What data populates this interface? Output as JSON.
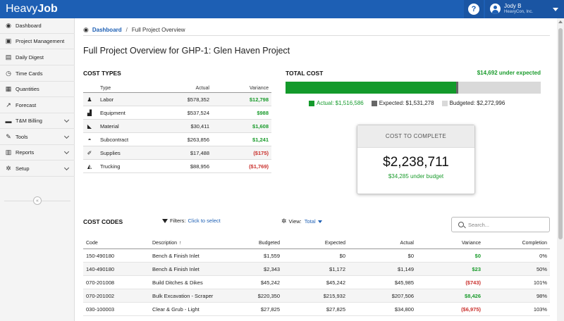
{
  "app": {
    "logo_light": "Heavy",
    "logo_bold": "Job"
  },
  "user": {
    "name": "Jody B",
    "company": "HeavyCon, Inc."
  },
  "help": {
    "label": "?"
  },
  "sidebar": {
    "items": [
      {
        "label": "Dashboard",
        "icon": "dashboard-icon",
        "glyph": "◉"
      },
      {
        "label": "Project Management",
        "icon": "project-management-icon",
        "glyph": "▣"
      },
      {
        "label": "Daily Digest",
        "icon": "daily-digest-icon",
        "glyph": "▤"
      },
      {
        "label": "Time Cards",
        "icon": "clock-icon",
        "glyph": "◷"
      },
      {
        "label": "Quantities",
        "icon": "calculator-icon",
        "glyph": "▦"
      },
      {
        "label": "Forecast",
        "icon": "line-chart-icon",
        "glyph": "↗"
      },
      {
        "label": "T&M Billing",
        "icon": "billing-icon",
        "glyph": "▬"
      },
      {
        "label": "Tools",
        "icon": "wrench-icon",
        "glyph": "✎"
      },
      {
        "label": "Reports",
        "icon": "bar-chart-icon",
        "glyph": "▥"
      },
      {
        "label": "Setup",
        "icon": "gear-icon",
        "glyph": "✲"
      }
    ],
    "collapse_label": "«"
  },
  "breadcrumb": {
    "home": "Dashboard",
    "separator": "/",
    "current": "Full Project Overview"
  },
  "page_title": "Full Project Overview for GHP-1: Glen Haven Project",
  "cost_types": {
    "title": "COST TYPES",
    "headers": {
      "type": "Type",
      "actual": "Actual",
      "variance": "Variance"
    },
    "rows": [
      {
        "type": "Labor",
        "actual": "$578,352",
        "variance": "$12,798",
        "status": "pos",
        "icon": "person-icon",
        "glyph": "♟"
      },
      {
        "type": "Equipment",
        "actual": "$537,524",
        "variance": "$988",
        "status": "pos",
        "icon": "truck-icon",
        "glyph": "▟"
      },
      {
        "type": "Material",
        "actual": "$30,411",
        "variance": "$1,608",
        "status": "pos",
        "icon": "material-icon",
        "glyph": "◣"
      },
      {
        "type": "Subcontract",
        "actual": "$263,856",
        "variance": "$1,241",
        "status": "pos",
        "icon": "hard-hat-icon",
        "glyph": "◓"
      },
      {
        "type": "Supplies",
        "actual": "$17,488",
        "variance": "($175)",
        "status": "neg",
        "icon": "supplies-icon",
        "glyph": "✐"
      },
      {
        "type": "Trucking",
        "actual": "$88,956",
        "variance": "($1,769)",
        "status": "neg",
        "icon": "trucking-icon",
        "glyph": "◭"
      }
    ]
  },
  "total_cost": {
    "title": "TOTAL COST",
    "under_expected": "$14,692 under expected",
    "actual_value": 1516586,
    "expected_value": 1531278,
    "budgeted_value": 2272996,
    "legend": {
      "actual": "Actual: $1,516,586",
      "expected": "Expected: $1,531,278",
      "budgeted": "Budgeted: $2,272,996"
    },
    "colors": {
      "actual": "#139a2b",
      "expected": "#666666",
      "budgeted": "#d9d9d9"
    }
  },
  "cost_to_complete": {
    "title": "COST TO COMPLETE",
    "value": "$2,238,711",
    "sub": "$34,285 under budget"
  },
  "cost_codes": {
    "title": "COST CODES",
    "filters_label": "Filters:",
    "filters_link": "Click to select",
    "view_label": "View:",
    "view_value": "Total",
    "search_placeholder": "Search...",
    "headers": {
      "code": "Code",
      "description": "Description",
      "sort_arrow": "↑",
      "budgeted": "Budgeted",
      "expected": "Expected",
      "actual": "Actual",
      "variance": "Variance",
      "completion": "Completion"
    },
    "rows": [
      {
        "code": "150-490180",
        "description": "Bench & Finish Inlet",
        "budgeted": "$1,559",
        "expected": "$0",
        "actual": "$0",
        "variance": "$0",
        "status": "pos",
        "completion": "0%"
      },
      {
        "code": "140-490180",
        "description": "Bench & Finish Inlet",
        "budgeted": "$2,343",
        "expected": "$1,172",
        "actual": "$1,149",
        "variance": "$23",
        "status": "pos",
        "completion": "50%"
      },
      {
        "code": "070-201008",
        "description": "Build Ditches & Dikes",
        "budgeted": "$45,242",
        "expected": "$45,242",
        "actual": "$45,985",
        "variance": "($743)",
        "status": "neg",
        "completion": "101%"
      },
      {
        "code": "070-201002",
        "description": "Bulk Excavation - Scraper",
        "budgeted": "$220,350",
        "expected": "$215,932",
        "actual": "$207,506",
        "variance": "$8,426",
        "status": "pos",
        "completion": "98%"
      },
      {
        "code": "030-100003",
        "description": "Clear & Grub - Light",
        "budgeted": "$27,825",
        "expected": "$27,825",
        "actual": "$34,800",
        "variance": "($6,975)",
        "status": "neg",
        "completion": "103%"
      }
    ]
  }
}
